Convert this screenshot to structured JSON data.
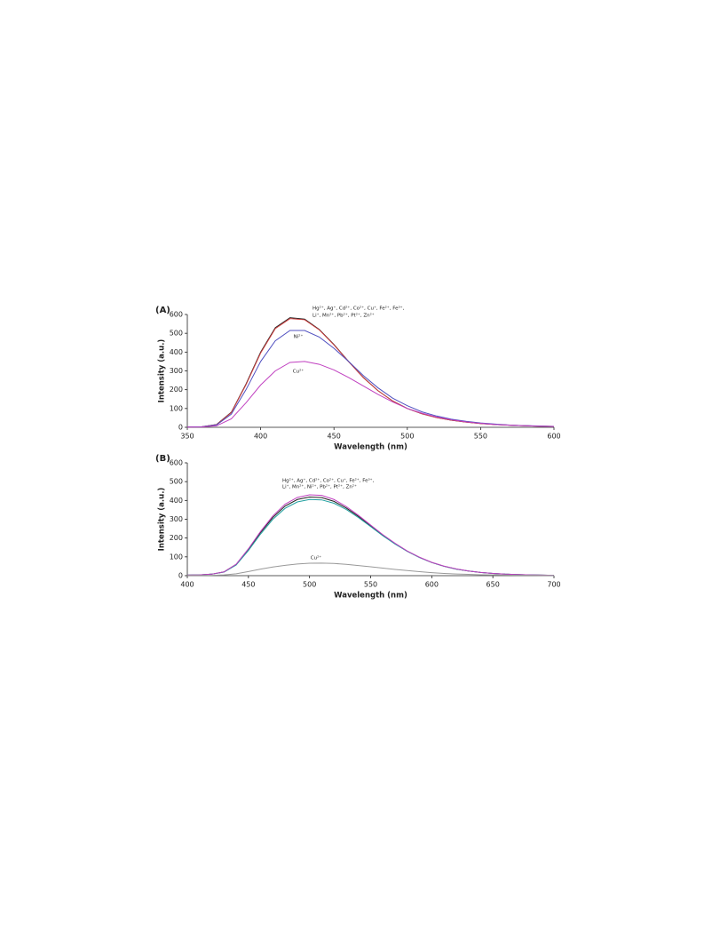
{
  "chart_data": [
    {
      "type": "line",
      "panel_label": "(A)",
      "x_label": "Wavelength (nm)",
      "y_label": "Intensity (a.u.)",
      "annotations": [
        "Hg²⁺, Ag⁺, Cd²⁺, Co²⁺, Cu⁺, Fe²⁺, Fe³⁺,",
        "Li⁺, Mn²⁺, Pb²⁺, Pt²⁺, Zn²⁺",
        "Ni²⁺",
        "Cu²⁺"
      ],
      "x": [
        350,
        360,
        370,
        380,
        390,
        400,
        410,
        420,
        430,
        440,
        450,
        460,
        470,
        480,
        490,
        500,
        510,
        520,
        530,
        540,
        550,
        560,
        570,
        580,
        590,
        600
      ],
      "series": [
        {
          "color": "#222222",
          "values": [
            2,
            3,
            15,
            80,
            230,
            400,
            530,
            583,
            575,
            520,
            440,
            350,
            265,
            195,
            140,
            100,
            72,
            52,
            38,
            28,
            20,
            15,
            11,
            8,
            6,
            5
          ]
        },
        {
          "color": "#d04040",
          "values": [
            2,
            3,
            14,
            78,
            226,
            395,
            525,
            578,
            572,
            518,
            438,
            349,
            264,
            195,
            140,
            100,
            72,
            52,
            38,
            28,
            20,
            15,
            11,
            8,
            6,
            5
          ]
        },
        {
          "color": "#5050c0",
          "values": [
            2,
            3,
            13,
            70,
            200,
            350,
            460,
            515,
            515,
            480,
            420,
            350,
            275,
            210,
            155,
            115,
            82,
            60,
            43,
            32,
            23,
            17,
            12,
            9,
            7,
            5
          ]
        },
        {
          "color": "#c040c0",
          "values": [
            1,
            2,
            8,
            45,
            130,
            225,
            300,
            345,
            350,
            335,
            305,
            265,
            220,
            175,
            135,
            100,
            75,
            55,
            40,
            29,
            21,
            15,
            11,
            8,
            6,
            4
          ]
        }
      ],
      "xlim": [
        350,
        600
      ],
      "xticks": [
        350,
        400,
        450,
        500,
        550,
        600
      ],
      "ylim": [
        0,
        600
      ],
      "yticks": [
        0,
        100,
        200,
        300,
        400,
        500,
        600
      ]
    },
    {
      "type": "line",
      "panel_label": "(B)",
      "x_label": "Wavelength (nm)",
      "y_label": "Intensity (a.u.)",
      "annotations": [
        "Hg²⁺, Ag⁺, Cd²⁺, Co²⁺, Cu⁺, Fe²⁺, Fe³⁺,",
        "Li⁺, Mn²⁺, Ni²⁺, Pb²⁺, Pt²⁺, Zn²⁺",
        "Cu²⁺"
      ],
      "x": [
        400,
        410,
        420,
        430,
        440,
        450,
        460,
        470,
        480,
        490,
        500,
        510,
        520,
        530,
        540,
        550,
        560,
        570,
        580,
        590,
        600,
        610,
        620,
        630,
        640,
        650,
        660,
        670,
        680,
        690,
        700
      ],
      "series": [
        {
          "color": "#222222",
          "values": [
            3,
            4,
            8,
            20,
            60,
            140,
            230,
            310,
            370,
            405,
            418,
            415,
            395,
            360,
            315,
            265,
            215,
            170,
            130,
            97,
            70,
            50,
            35,
            25,
            17,
            12,
            8,
            6,
            4,
            3,
            2
          ]
        },
        {
          "color": "#20a0a0",
          "values": [
            3,
            4,
            8,
            19,
            57,
            134,
            222,
            300,
            358,
            392,
            405,
            403,
            385,
            352,
            309,
            261,
            212,
            168,
            129,
            96,
            70,
            50,
            35,
            25,
            17,
            12,
            8,
            6,
            4,
            3,
            2
          ]
        },
        {
          "color": "#c040c0",
          "values": [
            3,
            4,
            8,
            20,
            61,
            143,
            236,
            318,
            380,
            416,
            430,
            427,
            405,
            368,
            321,
            269,
            218,
            172,
            131,
            98,
            71,
            51,
            36,
            25,
            17,
            12,
            8,
            6,
            4,
            3,
            2
          ]
        },
        {
          "color": "#999999",
          "values": [
            1,
            1,
            2,
            4,
            10,
            22,
            35,
            46,
            55,
            62,
            66,
            67,
            65,
            60,
            54,
            47,
            40,
            33,
            27,
            21,
            16,
            12,
            9,
            7,
            5,
            4,
            3,
            2,
            2,
            1,
            1
          ]
        }
      ],
      "xlim": [
        400,
        700
      ],
      "xticks": [
        400,
        450,
        500,
        550,
        600,
        650,
        700
      ],
      "ylim": [
        0,
        600
      ],
      "yticks": [
        0,
        100,
        200,
        300,
        400,
        500,
        600
      ]
    }
  ]
}
